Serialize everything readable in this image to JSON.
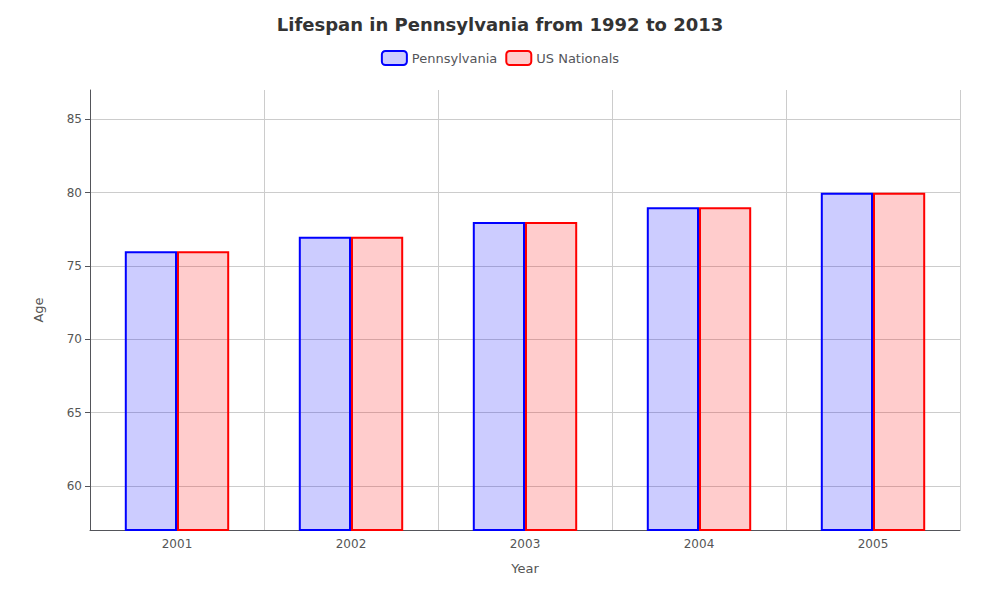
{
  "chart_data": {
    "type": "bar",
    "title": "Lifespan in Pennsylvania from 1992 to 2013",
    "xlabel": "Year",
    "ylabel": "Age",
    "categories": [
      "2001",
      "2002",
      "2003",
      "2004",
      "2005"
    ],
    "series": [
      {
        "name": "Pennsylvania",
        "color": "#0000ff",
        "values": [
          76,
          77,
          78,
          79,
          80
        ]
      },
      {
        "name": "US Nationals",
        "color": "#ff0000",
        "values": [
          76,
          77,
          78,
          79,
          80
        ]
      }
    ],
    "ylim": [
      57,
      87
    ],
    "yticks": [
      60,
      65,
      70,
      75,
      80,
      85
    ],
    "grid": true,
    "legend": "top"
  }
}
